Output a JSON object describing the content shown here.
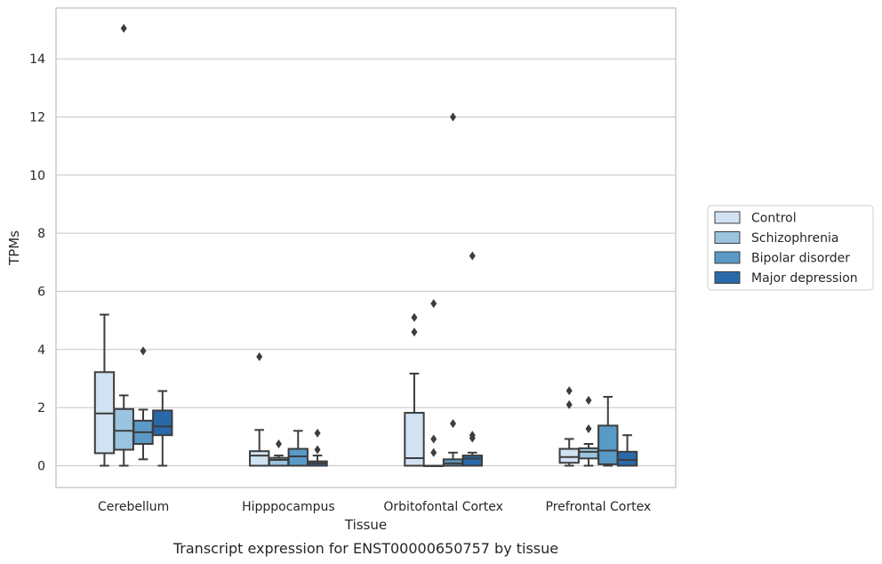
{
  "chart_data": {
    "type": "box",
    "title": "Transcript expression for ENST00000650757 by tissue",
    "xlabel": "Tissue",
    "ylabel": "TPMs",
    "categories": [
      "Cerebellum",
      "Hipppocampus",
      "Orbitofontal Cortex",
      "Prefrontal Cortex"
    ],
    "ylim": [
      -0.75,
      15.75
    ],
    "yticks": [
      0,
      2,
      4,
      6,
      8,
      10,
      12,
      14
    ],
    "grid": "horizontal",
    "legend_position": "right",
    "series": [
      {
        "name": "Control",
        "color": "#d1e2f2",
        "boxes": [
          {
            "min": 0,
            "q1": 0.43,
            "median": 1.8,
            "q3": 3.22,
            "max": 5.2,
            "outliers": []
          },
          {
            "min": 0,
            "q1": 0,
            "median": 0.35,
            "q3": 0.5,
            "max": 1.23,
            "outliers": [
              3.75
            ]
          },
          {
            "min": 0,
            "q1": 0,
            "median": 0.26,
            "q3": 1.82,
            "max": 3.17,
            "outliers": [
              4.6,
              5.1
            ]
          },
          {
            "min": 0,
            "q1": 0.1,
            "median": 0.3,
            "q3": 0.58,
            "max": 0.92,
            "outliers": [
              2.1,
              2.58
            ]
          }
        ]
      },
      {
        "name": "Schizophrenia",
        "color": "#9ac4df",
        "boxes": [
          {
            "min": 0,
            "q1": 0.55,
            "median": 1.2,
            "q3": 1.95,
            "max": 2.42,
            "outliers": [
              15.05
            ]
          },
          {
            "min": 0,
            "q1": 0,
            "median": 0.2,
            "q3": 0.27,
            "max": 0.35,
            "outliers": [
              0.75
            ]
          },
          {
            "min": 0,
            "q1": 0,
            "median": 0,
            "q3": 0,
            "max": 0,
            "outliers": [
              0.45,
              0.92,
              5.58
            ]
          },
          {
            "min": 0,
            "q1": 0.25,
            "median": 0.48,
            "q3": 0.6,
            "max": 0.75,
            "outliers": [
              1.27,
              2.25
            ]
          }
        ]
      },
      {
        "name": "Bipolar disorder",
        "color": "#5a9ac7",
        "boxes": [
          {
            "min": 0.22,
            "q1": 0.75,
            "median": 1.15,
            "q3": 1.55,
            "max": 1.93,
            "outliers": [
              3.95
            ]
          },
          {
            "min": 0,
            "q1": 0,
            "median": 0.32,
            "q3": 0.58,
            "max": 1.2,
            "outliers": []
          },
          {
            "min": 0,
            "q1": 0,
            "median": 0.08,
            "q3": 0.22,
            "max": 0.45,
            "outliers": [
              1.45,
              12.0
            ]
          },
          {
            "min": 0,
            "q1": 0.05,
            "median": 0.52,
            "q3": 1.38,
            "max": 2.37,
            "outliers": []
          }
        ]
      },
      {
        "name": "Major depression",
        "color": "#2a69a9",
        "boxes": [
          {
            "min": 0,
            "q1": 1.05,
            "median": 1.35,
            "q3": 1.9,
            "max": 2.57,
            "outliers": []
          },
          {
            "min": 0,
            "q1": 0,
            "median": 0.08,
            "q3": 0.15,
            "max": 0.35,
            "outliers": [
              0.55,
              1.12
            ]
          },
          {
            "min": 0,
            "q1": 0,
            "median": 0.25,
            "q3": 0.35,
            "max": 0.45,
            "outliers": [
              0.95,
              1.05,
              7.22
            ]
          },
          {
            "min": 0,
            "q1": 0,
            "median": 0.2,
            "q3": 0.48,
            "max": 1.05,
            "outliers": []
          }
        ]
      }
    ]
  }
}
